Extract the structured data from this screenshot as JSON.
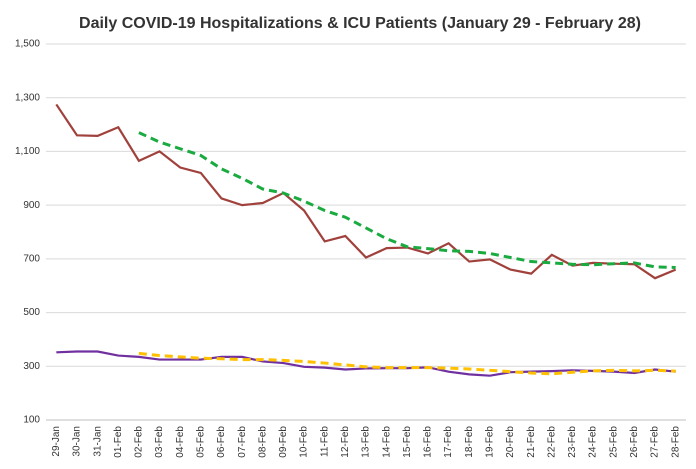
{
  "chart_data": {
    "type": "line",
    "title": "Daily COVID-19 Hospitalizations & ICU Patients (January 29 - February 28)",
    "categories": [
      "29-Jan",
      "30-Jan",
      "31-Jan",
      "01-Feb",
      "02-Feb",
      "03-Feb",
      "04-Feb",
      "05-Feb",
      "06-Feb",
      "07-Feb",
      "08-Feb",
      "09-Feb",
      "10-Feb",
      "11-Feb",
      "12-Feb",
      "13-Feb",
      "14-Feb",
      "15-Feb",
      "16-Feb",
      "17-Feb",
      "18-Feb",
      "19-Feb",
      "20-Feb",
      "21-Feb",
      "22-Feb",
      "23-Feb",
      "24-Feb",
      "25-Feb",
      "26-Feb",
      "27-Feb",
      "28-Feb"
    ],
    "series": [
      {
        "color": "#a0413c",
        "dash": false,
        "values": [
          1275,
          1160,
          1158,
          1190,
          1065,
          1100,
          1040,
          1020,
          925,
          900,
          908,
          945,
          880,
          765,
          785,
          705,
          740,
          742,
          720,
          758,
          690,
          698,
          660,
          645,
          715,
          675,
          685,
          682,
          680,
          628,
          660
        ]
      },
      {
        "color": "#1aab40",
        "dash": true,
        "values": [
          null,
          null,
          null,
          null,
          1170,
          1135,
          1110,
          1085,
          1035,
          1000,
          960,
          945,
          915,
          880,
          855,
          815,
          775,
          745,
          738,
          730,
          728,
          720,
          705,
          690,
          685,
          680,
          678,
          682,
          685,
          670,
          668
        ]
      },
      {
        "color": "#7030a0",
        "dash": false,
        "values": [
          352,
          355,
          355,
          340,
          335,
          325,
          325,
          325,
          335,
          335,
          318,
          312,
          298,
          295,
          288,
          292,
          293,
          293,
          296,
          280,
          270,
          265,
          278,
          280,
          282,
          285,
          283,
          280,
          275,
          288,
          280
        ]
      },
      {
        "color": "#ffc000",
        "dash": true,
        "values": [
          null,
          null,
          null,
          null,
          348,
          340,
          335,
          330,
          328,
          325,
          325,
          322,
          318,
          312,
          305,
          298,
          295,
          295,
          295,
          293,
          290,
          285,
          280,
          275,
          272,
          278,
          283,
          285,
          283,
          285,
          282
        ]
      }
    ],
    "ylim": [
      100,
      1500
    ],
    "yticks": [
      100,
      300,
      500,
      700,
      900,
      {
        "value": 1100,
        "label": "1,100"
      },
      {
        "value": 1300,
        "label": "1,300"
      },
      {
        "value": 1500,
        "label": "1,500"
      }
    ],
    "grid": true
  }
}
